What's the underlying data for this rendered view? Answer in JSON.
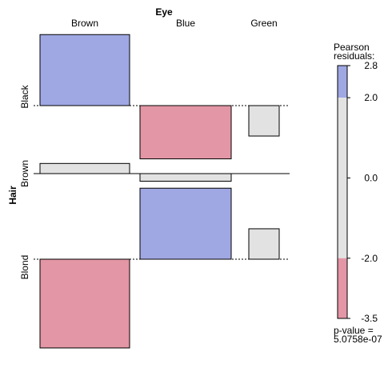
{
  "chart_data": {
    "type": "association",
    "x_title": "Eye",
    "y_title": "Hair",
    "x_categories": [
      "Brown",
      "Blue",
      "Green"
    ],
    "y_categories": [
      "Black",
      "Brown",
      "Blond"
    ],
    "cells": [
      {
        "row": "Black",
        "col": "Brown",
        "residual": 2.8
      },
      {
        "row": "Black",
        "col": "Blue",
        "residual": -2.1
      },
      {
        "row": "Black",
        "col": "Green",
        "residual": -1.2
      },
      {
        "row": "Brown",
        "col": "Brown",
        "residual": 0.4
      },
      {
        "row": "Brown",
        "col": "Blue",
        "residual": -0.3
      },
      {
        "row": "Brown",
        "col": "Green",
        "residual": 0.0
      },
      {
        "row": "Blond",
        "col": "Brown",
        "residual": -3.5
      },
      {
        "row": "Blond",
        "col": "Blue",
        "residual": 2.8
      },
      {
        "row": "Blond",
        "col": "Green",
        "residual": 1.2
      }
    ],
    "legend": {
      "title": "Pearson\nresiduals:",
      "ticks": [
        "2.8",
        "2.0",
        "0.0",
        "-2.0",
        "-3.5"
      ],
      "range": [
        -3.5,
        2.8
      ],
      "thresholds": [
        -2.0,
        2.0
      ],
      "p_value": "p-value =\n5.0758e-07"
    },
    "colors": {
      "positive": "#9fa8e3",
      "negative": "#e396a5",
      "neutral": "#e2e2e2"
    }
  }
}
